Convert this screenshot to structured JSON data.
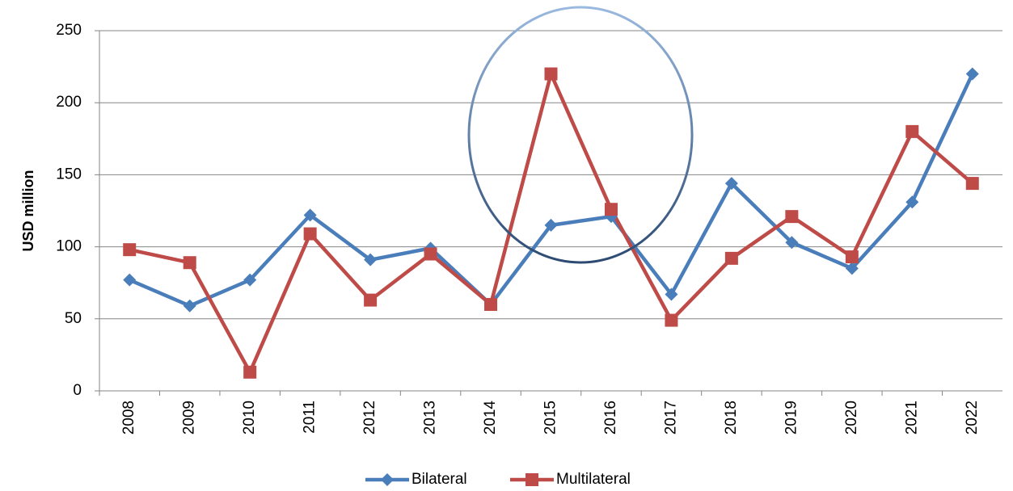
{
  "chart_data": {
    "type": "line",
    "y_label": "USD million",
    "categories": [
      "2008",
      "2009",
      "2010",
      "2011",
      "2012",
      "2013",
      "2014",
      "2015",
      "2016",
      "2017",
      "2018",
      "2019",
      "2020",
      "2021",
      "2022"
    ],
    "series": [
      {
        "name": "Bilateral",
        "color": "#4a7ebb",
        "marker": "diamond",
        "values": [
          77,
          59,
          77,
          122,
          91,
          99,
          60,
          115,
          121,
          67,
          144,
          103,
          85,
          131,
          220
        ]
      },
      {
        "name": "Multilateral",
        "color": "#be4b48",
        "marker": "square",
        "values": [
          98,
          89,
          13,
          109,
          63,
          95,
          60,
          220,
          126,
          49,
          92,
          121,
          93,
          180,
          144
        ]
      }
    ],
    "ylim": [
      0,
      250
    ],
    "yticks": [
      0,
      50,
      100,
      150,
      200,
      250
    ],
    "grid": true,
    "legend": "bottom"
  }
}
